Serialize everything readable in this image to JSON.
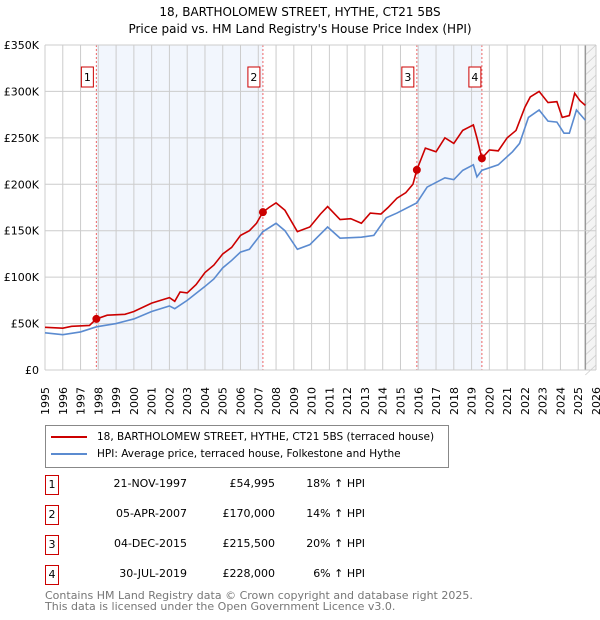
{
  "chart_data": {
    "type": "line",
    "title": "18, BARTHOLOMEW STREET, HYTHE, CT21 5BS",
    "subtitle": "Price paid vs. HM Land Registry's House Price Index (HPI)",
    "xlim": [
      1995,
      2026
    ],
    "ylim": [
      0,
      350000
    ],
    "y_ticks": [
      {
        "v": 0,
        "label": "£0"
      },
      {
        "v": 50000,
        "label": "£50K"
      },
      {
        "v": 100000,
        "label": "£100K"
      },
      {
        "v": 150000,
        "label": "£150K"
      },
      {
        "v": 200000,
        "label": "£200K"
      },
      {
        "v": 250000,
        "label": "£250K"
      },
      {
        "v": 300000,
        "label": "£300K"
      },
      {
        "v": 350000,
        "label": "£350K"
      }
    ],
    "x_ticks": [
      "1995",
      "1996",
      "1997",
      "1998",
      "1999",
      "2000",
      "2001",
      "2002",
      "2003",
      "2004",
      "2005",
      "2006",
      "2007",
      "2008",
      "2009",
      "2010",
      "2011",
      "2012",
      "2013",
      "2014",
      "2015",
      "2016",
      "2017",
      "2018",
      "2019",
      "2020",
      "2021",
      "2022",
      "2023",
      "2024",
      "2025",
      "2026"
    ],
    "grid": true,
    "shaded_ranges": [
      [
        1997.89,
        2007.26
      ],
      [
        2015.92,
        2019.58
      ]
    ],
    "forecast_start": 2025.4,
    "series": [
      {
        "name": "18, BARTHOLOMEW STREET, HYTHE, CT21 5BS (terraced house)",
        "color": "#cc0000",
        "points": [
          [
            1995,
            46000
          ],
          [
            1996,
            45000
          ],
          [
            1996.5,
            47000
          ],
          [
            1997.5,
            48000
          ],
          [
            1997.89,
            54995
          ],
          [
            1998.5,
            59000
          ],
          [
            1999.5,
            60000
          ],
          [
            2000,
            63000
          ],
          [
            2001,
            72000
          ],
          [
            2002,
            78000
          ],
          [
            2002.3,
            74000
          ],
          [
            2002.6,
            84000
          ],
          [
            2003,
            83000
          ],
          [
            2003.5,
            92000
          ],
          [
            2004,
            105000
          ],
          [
            2004.5,
            113000
          ],
          [
            2005,
            125000
          ],
          [
            2005.5,
            132000
          ],
          [
            2006,
            145000
          ],
          [
            2006.5,
            150000
          ],
          [
            2006.9,
            158000
          ],
          [
            2007.26,
            170000
          ],
          [
            2007.6,
            175000
          ],
          [
            2008,
            180000
          ],
          [
            2008.5,
            172000
          ],
          [
            2009.2,
            149000
          ],
          [
            2009.9,
            154000
          ],
          [
            2010.5,
            168000
          ],
          [
            2010.9,
            176000
          ],
          [
            2011.6,
            162000
          ],
          [
            2012.2,
            163000
          ],
          [
            2012.8,
            158000
          ],
          [
            2013.3,
            169000
          ],
          [
            2013.9,
            168000
          ],
          [
            2014.3,
            175000
          ],
          [
            2014.8,
            185000
          ],
          [
            2015.3,
            191000
          ],
          [
            2015.7,
            200000
          ],
          [
            2015.92,
            215500
          ],
          [
            2016.4,
            239000
          ],
          [
            2017,
            235000
          ],
          [
            2017.5,
            250000
          ],
          [
            2018,
            244000
          ],
          [
            2018.5,
            258000
          ],
          [
            2019.1,
            264000
          ],
          [
            2019.3,
            250000
          ],
          [
            2019.58,
            228000
          ],
          [
            2020,
            237000
          ],
          [
            2020.5,
            236000
          ],
          [
            2021,
            250000
          ],
          [
            2021.5,
            258000
          ],
          [
            2022,
            283000
          ],
          [
            2022.3,
            294000
          ],
          [
            2022.8,
            300000
          ],
          [
            2023.3,
            288000
          ],
          [
            2023.8,
            289000
          ],
          [
            2024.1,
            272000
          ],
          [
            2024.5,
            274000
          ],
          [
            2024.8,
            298000
          ],
          [
            2025.1,
            290000
          ],
          [
            2025.4,
            285000
          ]
        ]
      },
      {
        "name": "HPI: Average price, terraced house, Folkestone and Hythe",
        "color": "#5b8bd0",
        "points": [
          [
            1995,
            40000
          ],
          [
            1996,
            38000
          ],
          [
            1997,
            41000
          ],
          [
            1997.89,
            46500
          ],
          [
            1999,
            50000
          ],
          [
            2000,
            55000
          ],
          [
            2001,
            63000
          ],
          [
            2002,
            69000
          ],
          [
            2002.3,
            66000
          ],
          [
            2003,
            75000
          ],
          [
            2004,
            90000
          ],
          [
            2004.5,
            98000
          ],
          [
            2005,
            110000
          ],
          [
            2005.5,
            118000
          ],
          [
            2006,
            127000
          ],
          [
            2006.5,
            130000
          ],
          [
            2007.26,
            149000
          ],
          [
            2008,
            158000
          ],
          [
            2008.5,
            150000
          ],
          [
            2009.2,
            130000
          ],
          [
            2009.9,
            135000
          ],
          [
            2010.9,
            154000
          ],
          [
            2011.6,
            142000
          ],
          [
            2012.8,
            143000
          ],
          [
            2013.5,
            145000
          ],
          [
            2014.2,
            164000
          ],
          [
            2014.8,
            169000
          ],
          [
            2015.92,
            180000
          ],
          [
            2016.5,
            197000
          ],
          [
            2017.5,
            207000
          ],
          [
            2018,
            205000
          ],
          [
            2018.5,
            215000
          ],
          [
            2019.1,
            221000
          ],
          [
            2019.3,
            208000
          ],
          [
            2019.58,
            215000
          ],
          [
            2020.5,
            221000
          ],
          [
            2021.3,
            235000
          ],
          [
            2021.7,
            244000
          ],
          [
            2022.2,
            272000
          ],
          [
            2022.8,
            280000
          ],
          [
            2023.3,
            268000
          ],
          [
            2023.8,
            267000
          ],
          [
            2024.2,
            255000
          ],
          [
            2024.5,
            255000
          ],
          [
            2024.9,
            280000
          ],
          [
            2025.4,
            269000
          ]
        ]
      }
    ],
    "sales": [
      {
        "n": "1",
        "x": 1997.89,
        "y": 54995
      },
      {
        "n": "2",
        "x": 2007.26,
        "y": 170000
      },
      {
        "n": "3",
        "x": 2015.92,
        "y": 215500
      },
      {
        "n": "4",
        "x": 2019.58,
        "y": 228000
      }
    ],
    "legend_placement": "below"
  },
  "table": [
    {
      "n": "1",
      "date": "21-NOV-1997",
      "price": "£54,995",
      "hpi": "18% ↑ HPI"
    },
    {
      "n": "2",
      "date": "05-APR-2007",
      "price": "£170,000",
      "hpi": "14% ↑ HPI"
    },
    {
      "n": "3",
      "date": "04-DEC-2015",
      "price": "£215,500",
      "hpi": "20% ↑ HPI"
    },
    {
      "n": "4",
      "date": "30-JUL-2019",
      "price": "£228,000",
      "hpi": "6% ↑ HPI"
    }
  ],
  "footer": {
    "line1": "Contains HM Land Registry data © Crown copyright and database right 2025.",
    "line2": "This data is licensed under the Open Government Licence v3.0."
  }
}
